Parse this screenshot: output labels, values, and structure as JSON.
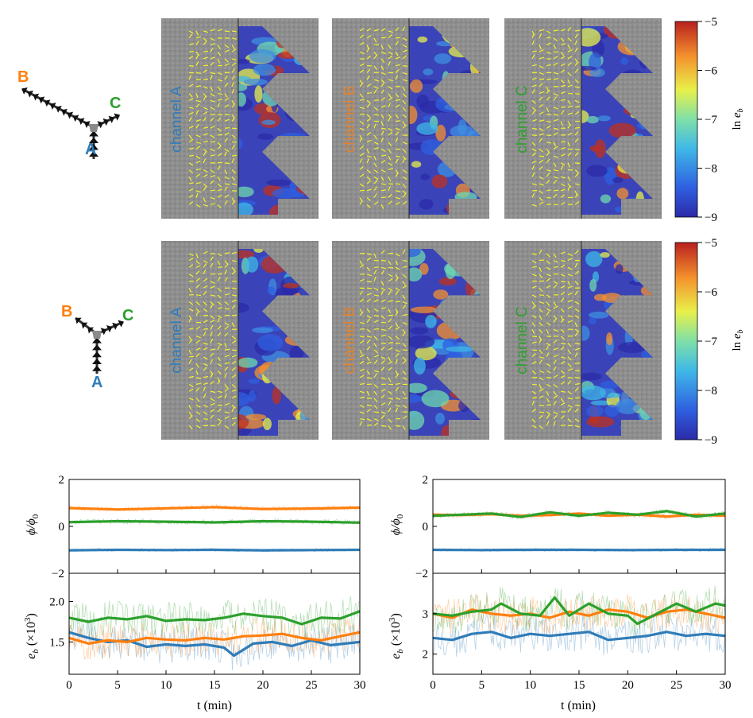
{
  "diagrams": [
    {
      "letters": {
        "a": "A",
        "b": "B",
        "c": "C"
      }
    },
    {
      "letters": {
        "a": "A",
        "b": "B",
        "c": "C"
      }
    }
  ],
  "panels": {
    "row1": [
      "channel A",
      "channel B",
      "channel C"
    ],
    "row2": [
      "channel A",
      "channel B",
      "channel C"
    ]
  },
  "colorbar": {
    "label": "ln e_b",
    "ticks": [
      "−5",
      "−6",
      "−7",
      "−8",
      "−9"
    ],
    "range": [
      -9,
      -5
    ]
  },
  "colors": {
    "A": "#2f7cb8",
    "B": "#ff7f0e",
    "C": "#2ca02c",
    "yellow": "#f4f22a"
  },
  "chart_data": [
    {
      "type": "line",
      "panel": "left-top",
      "ylabel": "φ/φ0",
      "xlim": [
        0,
        30
      ],
      "ylim": [
        -2,
        2
      ],
      "yticks": [
        "−2",
        "0",
        "2"
      ],
      "series": [
        {
          "name": "A",
          "x": [
            0,
            5,
            10,
            15,
            20,
            25,
            30
          ],
          "values": [
            -1.02,
            -1.0,
            -1.01,
            -1.0,
            -1.02,
            -1.01,
            -1.0
          ]
        },
        {
          "name": "B",
          "x": [
            0,
            5,
            10,
            15,
            20,
            25,
            30
          ],
          "values": [
            0.78,
            0.72,
            0.77,
            0.82,
            0.74,
            0.76,
            0.8
          ]
        },
        {
          "name": "C",
          "x": [
            0,
            5,
            10,
            15,
            20,
            25,
            30
          ],
          "values": [
            0.18,
            0.22,
            0.2,
            0.17,
            0.22,
            0.2,
            0.16
          ]
        }
      ]
    },
    {
      "type": "line",
      "panel": "left-bottom",
      "ylabel": "e_b (×10^3)",
      "xlabel": "t (min)",
      "xlim": [
        0,
        30
      ],
      "ylim": [
        1.1,
        2.35
      ],
      "xticks": [
        "0",
        "5",
        "10",
        "15",
        "20",
        "25",
        "30"
      ],
      "yticks": [
        "1.5",
        "2.0"
      ],
      "series": [
        {
          "name": "A",
          "x": [
            0,
            2,
            4,
            6,
            8,
            10,
            12,
            14,
            16,
            17,
            19,
            21,
            23,
            25,
            27,
            30
          ],
          "values": [
            1.62,
            1.55,
            1.5,
            1.52,
            1.44,
            1.47,
            1.45,
            1.47,
            1.43,
            1.33,
            1.48,
            1.5,
            1.45,
            1.52,
            1.46,
            1.5
          ]
        },
        {
          "name": "B",
          "x": [
            0,
            2,
            4,
            6,
            8,
            10,
            12,
            14,
            16,
            18,
            20,
            22,
            24,
            26,
            28,
            30
          ],
          "values": [
            1.55,
            1.48,
            1.52,
            1.5,
            1.55,
            1.53,
            1.52,
            1.55,
            1.53,
            1.57,
            1.58,
            1.6,
            1.55,
            1.52,
            1.57,
            1.62
          ]
        },
        {
          "name": "C",
          "x": [
            0,
            2,
            4,
            6,
            8,
            10,
            12,
            14,
            16,
            18,
            20,
            22,
            24,
            26,
            28,
            30
          ],
          "values": [
            1.8,
            1.75,
            1.8,
            1.78,
            1.82,
            1.76,
            1.78,
            1.77,
            1.8,
            1.85,
            1.82,
            1.8,
            1.72,
            1.8,
            1.79,
            1.88
          ]
        }
      ]
    },
    {
      "type": "line",
      "panel": "right-top",
      "ylabel": "φ/φ0",
      "xlim": [
        0,
        30
      ],
      "ylim": [
        -2,
        2
      ],
      "yticks": [
        "−2",
        "0",
        "2"
      ],
      "series": [
        {
          "name": "A",
          "x": [
            0,
            5,
            10,
            15,
            20,
            25,
            30
          ],
          "values": [
            -1.0,
            -1.01,
            -1.0,
            -1.0,
            -1.01,
            -1.0,
            -1.0
          ]
        },
        {
          "name": "B",
          "x": [
            0,
            3,
            6,
            9,
            12,
            15,
            18,
            21,
            24,
            27,
            30
          ],
          "values": [
            0.5,
            0.48,
            0.52,
            0.45,
            0.48,
            0.55,
            0.45,
            0.5,
            0.42,
            0.5,
            0.45
          ]
        },
        {
          "name": "C",
          "x": [
            0,
            3,
            6,
            9,
            12,
            15,
            18,
            21,
            24,
            27,
            30
          ],
          "values": [
            0.45,
            0.5,
            0.55,
            0.4,
            0.6,
            0.45,
            0.58,
            0.5,
            0.65,
            0.42,
            0.55
          ]
        }
      ]
    },
    {
      "type": "line",
      "panel": "right-bottom",
      "ylabel": "e_b (×10^3)",
      "xlabel": "t (min)",
      "xlim": [
        0,
        30
      ],
      "ylim": [
        1.5,
        4.0
      ],
      "xticks": [
        "0",
        "5",
        "10",
        "15",
        "20",
        "25",
        "30"
      ],
      "yticks": [
        "2",
        "3"
      ],
      "series": [
        {
          "name": "A",
          "x": [
            0,
            2,
            4,
            6,
            8,
            10,
            12,
            14,
            16,
            18,
            20,
            22,
            24,
            26,
            28,
            30
          ],
          "values": [
            2.4,
            2.35,
            2.5,
            2.55,
            2.4,
            2.5,
            2.45,
            2.5,
            2.55,
            2.35,
            2.4,
            2.45,
            2.55,
            2.45,
            2.5,
            2.45
          ]
        },
        {
          "name": "B",
          "x": [
            0,
            2,
            4,
            6,
            8,
            10,
            12,
            14,
            16,
            18,
            20,
            22,
            24,
            26,
            28,
            30
          ],
          "values": [
            3.0,
            2.9,
            3.1,
            3.0,
            2.95,
            3.0,
            2.9,
            3.05,
            2.95,
            3.1,
            3.05,
            2.9,
            3.05,
            3.1,
            3.0,
            2.9
          ]
        },
        {
          "name": "C",
          "x": [
            0,
            2,
            4,
            6,
            7,
            9,
            11,
            12.5,
            14,
            16,
            18,
            20,
            21,
            23,
            25,
            27,
            29,
            30
          ],
          "values": [
            3.0,
            2.95,
            3.05,
            3.1,
            3.25,
            3.0,
            2.95,
            3.4,
            2.95,
            3.25,
            3.0,
            2.95,
            2.75,
            3.0,
            3.25,
            3.05,
            3.25,
            3.2
          ]
        }
      ]
    }
  ]
}
